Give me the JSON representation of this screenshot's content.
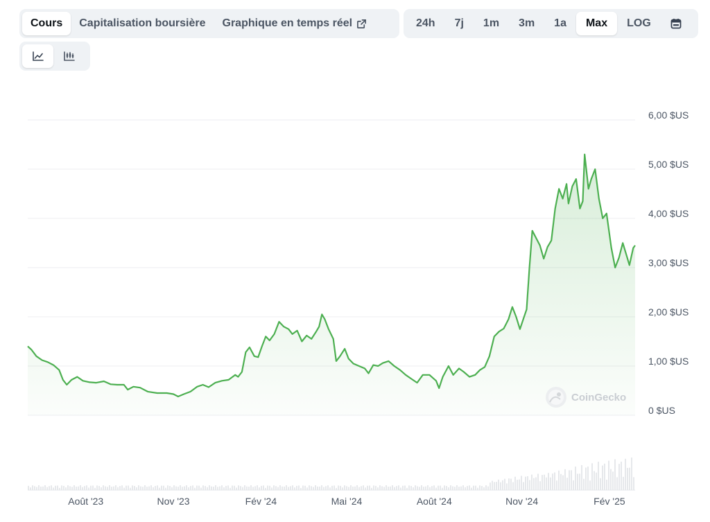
{
  "toolbar": {
    "views": [
      {
        "label": "Cours",
        "active": true
      },
      {
        "label": "Capitalisation boursière",
        "active": false
      },
      {
        "label": "Graphique en temps réel",
        "active": false
      }
    ],
    "ranges": [
      {
        "label": "24h",
        "active": false
      },
      {
        "label": "7j",
        "active": false
      },
      {
        "label": "1m",
        "active": false
      },
      {
        "label": "3m",
        "active": false
      },
      {
        "label": "1a",
        "active": false
      },
      {
        "label": "Max",
        "active": true
      },
      {
        "label": "LOG",
        "active": false
      }
    ],
    "calendar_icon": "calendar-icon",
    "chart_types": [
      {
        "icon": "line-chart-icon",
        "active": true
      },
      {
        "icon": "candlestick-chart-icon",
        "active": false
      }
    ]
  },
  "watermark": "CoinGecko",
  "chart_data": {
    "type": "area",
    "title": "",
    "xlabel": "",
    "ylabel": "",
    "color": "#4caf50",
    "grid": true,
    "y_ticks": [
      {
        "value": 0,
        "label": "0 $US"
      },
      {
        "value": 1,
        "label": "1,00 $US"
      },
      {
        "value": 2,
        "label": "2,00 $US"
      },
      {
        "value": 3,
        "label": "3,00 $US"
      },
      {
        "value": 4,
        "label": "4,00 $US"
      },
      {
        "value": 5,
        "label": "5,00 $US"
      },
      {
        "value": 6,
        "label": "6,00 $US"
      }
    ],
    "ylim": [
      0,
      6
    ],
    "x_range": [
      "2023-06-01",
      "2025-02-28"
    ],
    "x_ticks": [
      {
        "date": "2023-08-01",
        "label": "Août '23"
      },
      {
        "date": "2023-11-01",
        "label": "Nov '23"
      },
      {
        "date": "2024-02-01",
        "label": "Fév '24"
      },
      {
        "date": "2024-05-01",
        "label": "Mai '24"
      },
      {
        "date": "2024-08-01",
        "label": "Août '24"
      },
      {
        "date": "2024-11-01",
        "label": "Nov '24"
      },
      {
        "date": "2025-02-01",
        "label": "Fév '25"
      }
    ],
    "series": [
      {
        "values": [
          [
            "2023-06-01",
            1.4
          ],
          [
            "2023-06-05",
            1.33
          ],
          [
            "2023-06-10",
            1.2
          ],
          [
            "2023-06-16",
            1.12
          ],
          [
            "2023-06-22",
            1.08
          ],
          [
            "2023-06-28",
            1.02
          ],
          [
            "2023-07-04",
            0.92
          ],
          [
            "2023-07-08",
            0.72
          ],
          [
            "2023-07-12",
            0.62
          ],
          [
            "2023-07-17",
            0.72
          ],
          [
            "2023-07-23",
            0.78
          ],
          [
            "2023-07-29",
            0.7
          ],
          [
            "2023-08-05",
            0.67
          ],
          [
            "2023-08-12",
            0.66
          ],
          [
            "2023-08-20",
            0.69
          ],
          [
            "2023-08-27",
            0.63
          ],
          [
            "2023-09-03",
            0.62
          ],
          [
            "2023-09-10",
            0.62
          ],
          [
            "2023-09-14",
            0.52
          ],
          [
            "2023-09-20",
            0.58
          ],
          [
            "2023-09-27",
            0.56
          ],
          [
            "2023-10-05",
            0.48
          ],
          [
            "2023-10-15",
            0.45
          ],
          [
            "2023-10-25",
            0.45
          ],
          [
            "2023-11-01",
            0.43
          ],
          [
            "2023-11-06",
            0.38
          ],
          [
            "2023-11-12",
            0.43
          ],
          [
            "2023-11-19",
            0.48
          ],
          [
            "2023-11-26",
            0.58
          ],
          [
            "2023-12-02",
            0.62
          ],
          [
            "2023-12-08",
            0.57
          ],
          [
            "2023-12-15",
            0.66
          ],
          [
            "2023-12-22",
            0.7
          ],
          [
            "2023-12-29",
            0.72
          ],
          [
            "2024-01-05",
            0.82
          ],
          [
            "2024-01-08",
            0.78
          ],
          [
            "2024-01-12",
            0.88
          ],
          [
            "2024-01-16",
            1.28
          ],
          [
            "2024-01-20",
            1.38
          ],
          [
            "2024-01-25",
            1.2
          ],
          [
            "2024-01-29",
            1.18
          ],
          [
            "2024-02-02",
            1.4
          ],
          [
            "2024-02-06",
            1.6
          ],
          [
            "2024-02-10",
            1.52
          ],
          [
            "2024-02-15",
            1.65
          ],
          [
            "2024-02-20",
            1.9
          ],
          [
            "2024-02-25",
            1.8
          ],
          [
            "2024-03-01",
            1.75
          ],
          [
            "2024-03-05",
            1.65
          ],
          [
            "2024-03-10",
            1.72
          ],
          [
            "2024-03-15",
            1.5
          ],
          [
            "2024-03-20",
            1.62
          ],
          [
            "2024-03-25",
            1.55
          ],
          [
            "2024-03-30",
            1.7
          ],
          [
            "2024-04-02",
            1.8
          ],
          [
            "2024-04-05",
            2.05
          ],
          [
            "2024-04-08",
            1.95
          ],
          [
            "2024-04-12",
            1.75
          ],
          [
            "2024-04-17",
            1.55
          ],
          [
            "2024-04-20",
            1.1
          ],
          [
            "2024-04-24",
            1.2
          ],
          [
            "2024-04-29",
            1.35
          ],
          [
            "2024-05-03",
            1.15
          ],
          [
            "2024-05-08",
            1.05
          ],
          [
            "2024-05-14",
            1.0
          ],
          [
            "2024-05-20",
            0.95
          ],
          [
            "2024-05-24",
            0.85
          ],
          [
            "2024-05-29",
            1.02
          ],
          [
            "2024-06-03",
            1.0
          ],
          [
            "2024-06-08",
            1.06
          ],
          [
            "2024-06-14",
            1.1
          ],
          [
            "2024-06-20",
            1.0
          ],
          [
            "2024-06-26",
            0.92
          ],
          [
            "2024-07-02",
            0.82
          ],
          [
            "2024-07-08",
            0.74
          ],
          [
            "2024-07-14",
            0.66
          ],
          [
            "2024-07-20",
            0.82
          ],
          [
            "2024-07-27",
            0.82
          ],
          [
            "2024-08-03",
            0.7
          ],
          [
            "2024-08-06",
            0.55
          ],
          [
            "2024-08-10",
            0.78
          ],
          [
            "2024-08-16",
            1.0
          ],
          [
            "2024-08-21",
            0.82
          ],
          [
            "2024-08-27",
            0.95
          ],
          [
            "2024-09-01",
            0.88
          ],
          [
            "2024-09-07",
            0.78
          ],
          [
            "2024-09-13",
            0.82
          ],
          [
            "2024-09-18",
            0.92
          ],
          [
            "2024-09-23",
            0.98
          ],
          [
            "2024-09-28",
            1.2
          ],
          [
            "2024-10-03",
            1.6
          ],
          [
            "2024-10-08",
            1.7
          ],
          [
            "2024-10-13",
            1.76
          ],
          [
            "2024-10-18",
            1.95
          ],
          [
            "2024-10-22",
            2.2
          ],
          [
            "2024-10-26",
            2.0
          ],
          [
            "2024-10-30",
            1.75
          ],
          [
            "2024-11-03",
            1.98
          ],
          [
            "2024-11-06",
            2.15
          ],
          [
            "2024-11-09",
            3.0
          ],
          [
            "2024-11-12",
            3.75
          ],
          [
            "2024-11-16",
            3.6
          ],
          [
            "2024-11-20",
            3.45
          ],
          [
            "2024-11-24",
            3.18
          ],
          [
            "2024-11-28",
            3.42
          ],
          [
            "2024-12-02",
            3.55
          ],
          [
            "2024-12-06",
            4.2
          ],
          [
            "2024-12-10",
            4.6
          ],
          [
            "2024-12-14",
            4.4
          ],
          [
            "2024-12-18",
            4.7
          ],
          [
            "2024-12-20",
            4.3
          ],
          [
            "2024-12-24",
            4.65
          ],
          [
            "2024-12-28",
            4.8
          ],
          [
            "2025-01-01",
            4.2
          ],
          [
            "2025-01-04",
            4.35
          ],
          [
            "2025-01-06",
            5.3
          ],
          [
            "2025-01-10",
            4.6
          ],
          [
            "2025-01-13",
            4.8
          ],
          [
            "2025-01-17",
            5.0
          ],
          [
            "2025-01-21",
            4.4
          ],
          [
            "2025-01-25",
            4.0
          ],
          [
            "2025-01-29",
            4.1
          ],
          [
            "2025-02-03",
            3.4
          ],
          [
            "2025-02-07",
            3.0
          ],
          [
            "2025-02-11",
            3.2
          ],
          [
            "2025-02-15",
            3.5
          ],
          [
            "2025-02-19",
            3.25
          ],
          [
            "2025-02-22",
            3.05
          ],
          [
            "2025-02-26",
            3.4
          ],
          [
            "2025-02-28",
            3.45
          ]
        ]
      }
    ],
    "volume_note_hidden": true
  }
}
